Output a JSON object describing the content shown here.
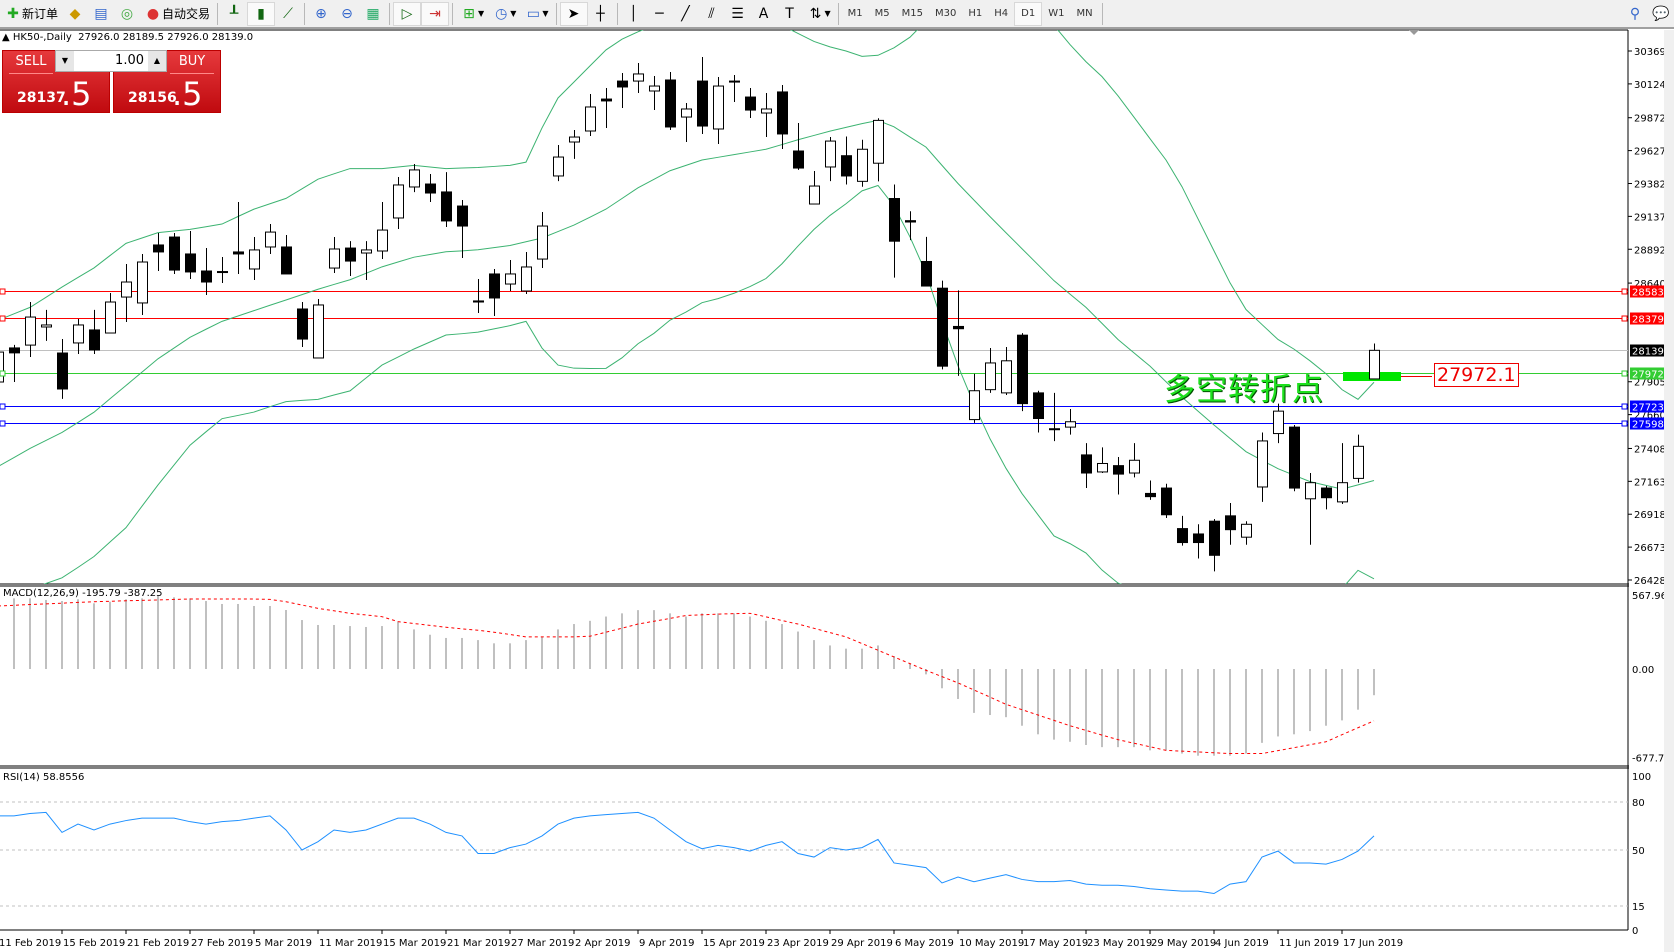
{
  "toolbar": {
    "new_order": "新订单",
    "auto_trading": "自动交易",
    "icons": [
      "new-order-icon",
      "market-watch-icon",
      "navigator-icon",
      "signals-icon",
      "auto-trading-icon",
      "bar-chart-icon",
      "candlestick-icon",
      "line-chart-icon",
      "zoom-in-icon",
      "zoom-out-icon",
      "tile-windows-icon",
      "chart-shift-icon",
      "auto-scroll-icon",
      "indicators-icon",
      "periods-icon",
      "templates-icon",
      "cursor-icon",
      "crosshair-icon",
      "vertical-line-icon",
      "horizontal-line-icon",
      "trendline-icon",
      "equidistant-channel-icon",
      "fibonacci-icon",
      "text-icon",
      "text-label-icon",
      "arrows-icon",
      "search-icon",
      "chat-icon"
    ],
    "timeframes": [
      "M1",
      "M5",
      "M15",
      "M30",
      "H1",
      "H4",
      "D1",
      "W1",
      "MN"
    ],
    "active_timeframe": "D1"
  },
  "header": {
    "symbol": "HK50-,Daily",
    "ohlc": "27926.0 28189.5 27926.0 28139.0"
  },
  "trade_panel": {
    "sell_label": "SELL",
    "buy_label": "BUY",
    "volume": "1.00",
    "sell_price_main": "28137",
    "sell_price_big": ".5",
    "buy_price_main": "28156",
    "buy_price_big": ".5"
  },
  "annotation": {
    "text": "多空转折点",
    "price_label": "27972.1",
    "color": "#00e600"
  },
  "macd": {
    "label": "MACD(12,26,9) -195.79 -387.25",
    "axis": [
      "567.96",
      "0.00",
      "-677.71"
    ]
  },
  "rsi": {
    "label": "RSI(14) 58.8556",
    "axis": [
      "100",
      "80",
      "50",
      "15",
      "0"
    ]
  },
  "chart_data": [
    {
      "type": "candlestick",
      "symbol": "HK50-",
      "timeframe": "Daily",
      "ylim": [
        26428,
        30369
      ],
      "y_ticks": [
        "30369.0",
        "30124.0",
        "29872.0",
        "29627.0",
        "29382.0",
        "29137.0",
        "28892.0",
        "28640.0",
        "27905.0",
        "27660.0",
        "27408.0",
        "27163.0",
        "26918.0",
        "26673.0",
        "26428.0"
      ],
      "x_tick_labels": [
        "11 Feb 2019",
        "15 Feb 2019",
        "21 Feb 2019",
        "27 Feb 2019",
        "5 Mar 2019",
        "11 Mar 2019",
        "15 Mar 2019",
        "21 Mar 2019",
        "27 Mar 2019",
        "2 Apr 2019",
        "9 Apr 2019",
        "15 Apr 2019",
        "23 Apr 2019",
        "29 Apr 2019",
        "6 May 2019",
        "10 May 2019",
        "17 May 2019",
        "23 May 2019",
        "29 May 2019",
        "4 Jun 2019",
        "11 Jun 2019",
        "17 Jun 2019"
      ],
      "ohlc": [
        [
          27903,
          28150,
          27880,
          28126
        ],
        [
          28157,
          28180,
          27903,
          28120
        ],
        [
          28178,
          28499,
          28089,
          28387
        ],
        [
          28313,
          28440,
          28209,
          28328
        ],
        [
          28119,
          28223,
          27777,
          27851
        ],
        [
          28194,
          28372,
          28112,
          28328
        ],
        [
          28291,
          28440,
          28112,
          28142
        ],
        [
          28268,
          28566,
          28268,
          28499
        ],
        [
          28536,
          28782,
          28350,
          28648
        ],
        [
          28492,
          28857,
          28402,
          28797
        ],
        [
          28924,
          29013,
          28730,
          28872
        ],
        [
          28983,
          29013,
          28708,
          28737
        ],
        [
          28857,
          29028,
          28670,
          28723
        ],
        [
          28730,
          28901,
          28551,
          28648
        ],
        [
          28723,
          28834,
          28641,
          28726
        ],
        [
          28872,
          29244,
          28708,
          28857
        ],
        [
          28745,
          28983,
          28663,
          28887
        ],
        [
          28909,
          29080,
          28857,
          29020
        ],
        [
          28909,
          28998,
          28708,
          28708
        ],
        [
          28447,
          28499,
          28164,
          28223
        ],
        [
          28082,
          28521,
          28082,
          28477
        ],
        [
          28752,
          28983,
          28715,
          28894
        ],
        [
          28901,
          28953,
          28693,
          28804
        ],
        [
          28864,
          28953,
          28663,
          28887
        ],
        [
          28879,
          29244,
          28819,
          29035
        ],
        [
          29125,
          29430,
          29043,
          29371
        ],
        [
          29356,
          29527,
          29318,
          29483
        ],
        [
          29378,
          29453,
          29244,
          29311
        ],
        [
          29319,
          29467,
          29058,
          29103
        ],
        [
          29214,
          29259,
          28827,
          29065
        ],
        [
          28507,
          28670,
          28417,
          28499
        ],
        [
          28708,
          28745,
          28395,
          28529
        ],
        [
          28633,
          28812,
          28581,
          28708
        ],
        [
          28581,
          28872,
          28559,
          28760
        ],
        [
          28819,
          29170,
          28752,
          29065
        ],
        [
          29438,
          29669,
          29400,
          29579
        ],
        [
          29691,
          29780,
          29565,
          29728
        ],
        [
          29773,
          30049,
          29736,
          29952
        ],
        [
          30011,
          30093,
          29795,
          29997
        ],
        [
          30145,
          30205,
          29944,
          30101
        ],
        [
          30145,
          30280,
          30056,
          30198
        ],
        [
          30071,
          30183,
          29929,
          30108
        ],
        [
          30153,
          30213,
          29780,
          29803
        ],
        [
          29877,
          29982,
          29691,
          29937
        ],
        [
          30145,
          30324,
          29751,
          29810
        ],
        [
          29788,
          30175,
          29676,
          30108
        ],
        [
          30140,
          30190,
          29989,
          30145
        ],
        [
          30026,
          30093,
          29870,
          29929
        ],
        [
          29907,
          30056,
          29728,
          29937
        ],
        [
          30064,
          30116,
          29639,
          29751
        ],
        [
          29624,
          29833,
          29483,
          29497
        ],
        [
          29229,
          29475,
          29229,
          29363
        ],
        [
          29505,
          29728,
          29400,
          29698
        ],
        [
          29589,
          29732,
          29374,
          29438
        ],
        [
          29398,
          29708,
          29358,
          29637
        ],
        [
          29533,
          29868,
          29398,
          29852
        ],
        [
          29270,
          29374,
          28681,
          28952
        ],
        [
          29105,
          29175,
          28960,
          29095
        ],
        [
          28801,
          28984,
          28618,
          28618
        ],
        [
          28602,
          28658,
          27997,
          28021
        ],
        [
          28317,
          28586,
          27949,
          28300
        ],
        [
          27623,
          27965,
          27599,
          27838
        ],
        [
          27846,
          28156,
          27822,
          28045
        ],
        [
          27822,
          28164,
          27806,
          28061
        ],
        [
          28252,
          28267,
          27686,
          27742
        ],
        [
          27822,
          27838,
          27527,
          27631
        ],
        [
          27555,
          27822,
          27463,
          27551
        ],
        [
          27567,
          27702,
          27511,
          27607
        ],
        [
          27360,
          27448,
          27113,
          27225
        ],
        [
          27233,
          27416,
          27225,
          27296
        ],
        [
          27280,
          27344,
          27065,
          27217
        ],
        [
          27225,
          27448,
          27193,
          27320
        ],
        [
          27073,
          27169,
          27025,
          27049
        ],
        [
          27113,
          27145,
          26890,
          26914
        ],
        [
          26811,
          26906,
          26684,
          26707
        ],
        [
          26771,
          26843,
          26588,
          26707
        ],
        [
          26866,
          26882,
          26492,
          26612
        ],
        [
          26906,
          27002,
          26691,
          26803
        ],
        [
          26747,
          26866,
          26691,
          26843
        ],
        [
          27121,
          27527,
          27010,
          27464
        ],
        [
          27519,
          27742,
          27448,
          27686
        ],
        [
          27567,
          27583,
          27089,
          27113
        ],
        [
          27033,
          27225,
          26691,
          27153
        ],
        [
          27113,
          27129,
          26954,
          27041
        ],
        [
          27010,
          27448,
          26994,
          27153
        ],
        [
          27185,
          27511,
          27153,
          27424
        ],
        [
          27926,
          28189.5,
          27926,
          28139
        ]
      ],
      "bollinger": {
        "color": "#3cb371",
        "upper": [
          28363,
          28411,
          28459,
          28534,
          28610,
          28682,
          28753,
          28845,
          28936,
          28976,
          29016,
          29028,
          29040,
          29060,
          29080,
          29136,
          29191,
          29231,
          29271,
          29342,
          29414,
          29454,
          29493,
          29493,
          29493,
          29505,
          29517,
          29505,
          29493,
          29497,
          29501,
          29509,
          29517,
          29541,
          29796,
          30019,
          30138,
          30258,
          30377,
          30457,
          30512,
          30560,
          30590,
          30610,
          30620,
          30630,
          30630,
          30620,
          30600,
          30560,
          30500,
          30440,
          30400,
          30369,
          30329,
          30337,
          30393,
          30472,
          30592,
          30680,
          30740,
          30780,
          30790,
          30770,
          30720,
          30640,
          30560,
          30417,
          30289,
          30178,
          30035,
          29876,
          29716,
          29557,
          29358,
          29119,
          28880,
          28642,
          28443,
          28331,
          28220,
          28148,
          28061,
          27965,
          27846,
          27774,
          27901
        ],
        "middle": [
          27273,
          27340,
          27408,
          27468,
          27527,
          27602,
          27678,
          27778,
          27877,
          27977,
          28076,
          28156,
          28236,
          28296,
          28355,
          28395,
          28435,
          28475,
          28514,
          28554,
          28594,
          28630,
          28665,
          28713,
          28761,
          28797,
          28833,
          28853,
          28873,
          28880,
          28888,
          28904,
          28920,
          28948,
          28976,
          29024,
          29072,
          29131,
          29191,
          29270,
          29350,
          29413,
          29477,
          29517,
          29557,
          29577,
          29597,
          29617,
          29637,
          29672,
          29708,
          29740,
          29772,
          29800,
          29828,
          29852,
          29804,
          29728,
          29653,
          29517,
          29382,
          29258,
          29135,
          29015,
          28896,
          28777,
          28658,
          28558,
          28459,
          28340,
          28220,
          28120,
          28021,
          27905,
          27790,
          27686,
          27583,
          27483,
          27384,
          27320,
          27257,
          27209,
          27161,
          27133,
          27105,
          27137,
          27169
        ],
        "lower": [
          26183,
          26269,
          26357,
          26402,
          26444,
          26522,
          26603,
          26711,
          26818,
          26978,
          27136,
          27284,
          27432,
          27532,
          27630,
          27654,
          27679,
          27719,
          27757,
          27766,
          27774,
          27806,
          27837,
          27933,
          28029,
          28089,
          28149,
          28201,
          28253,
          28263,
          28275,
          28299,
          28323,
          28355,
          28156,
          28029,
          28006,
          28004,
          28005,
          28083,
          28188,
          28266,
          28364,
          28424,
          28494,
          28524,
          28564,
          28614,
          28674,
          28784,
          28916,
          29040,
          29144,
          29231,
          29327,
          29367,
          29215,
          28984,
          28714,
          28354,
          28024,
          27736,
          27480,
          27260,
          27072,
          26914,
          26756,
          26699,
          26629,
          26502,
          26405,
          26364,
          26326,
          26253,
          26222,
          26253,
          26286,
          26324,
          26325,
          26309,
          26294,
          26270,
          26261,
          26301,
          26364,
          26500,
          26437
        ]
      },
      "levels": [
        {
          "value": "28583.6",
          "color": "#ff0000"
        },
        {
          "value": "28379.9",
          "color": "#ff0000"
        },
        {
          "value": "28139.0",
          "color": "#000000",
          "line": "#c0c0c0"
        },
        {
          "value": "27972.1",
          "color": "#32cd32"
        },
        {
          "value": "27723.4",
          "color": "#0000ff"
        },
        {
          "value": "27598.9",
          "color": "#0000ff"
        }
      ]
    },
    {
      "type": "bar",
      "name": "MACD(12,26,9)",
      "ylim": [
        -677.71,
        567.96
      ],
      "histogram": [
        530,
        528,
        528,
        516,
        508,
        521,
        491,
        503,
        521,
        528,
        546,
        536,
        528,
        508,
        486,
        486,
        471,
        471,
        441,
        366,
        329,
        329,
        321,
        314,
        321,
        354,
        296,
        256,
        232,
        232,
        216,
        192,
        192,
        216,
        240,
        296,
        336,
        360,
        392,
        416,
        440,
        440,
        416,
        392,
        416,
        416,
        416,
        392,
        360,
        336,
        280,
        216,
        176,
        152,
        152,
        176,
        96,
        40,
        -40,
        -144,
        -224,
        -328,
        -344,
        -360,
        -424,
        -488,
        -528,
        -544,
        -568,
        -584,
        -584,
        -584,
        -608,
        -608,
        -632,
        -648,
        -648,
        -648,
        -632,
        -552,
        -504,
        -488,
        -464,
        -424,
        -384,
        -304,
        -195.79
      ],
      "signal": [
        471,
        476,
        482,
        487,
        492,
        498,
        503,
        506,
        510,
        513,
        516,
        520,
        523,
        523,
        523,
        523,
        523,
        520,
        503,
        478,
        453,
        435,
        416,
        404,
        391,
        354,
        340,
        326,
        312,
        300,
        290,
        275,
        258,
        240,
        240,
        240,
        240,
        245,
        275,
        305,
        336,
        357,
        378,
        400,
        405,
        410,
        414,
        416,
        390,
        362,
        336,
        304,
        272,
        240,
        190,
        140,
        90,
        40,
        -10,
        -57,
        -104,
        -157,
        -210,
        -264,
        -304,
        -344,
        -384,
        -424,
        -459,
        -494,
        -528,
        -555,
        -581,
        -608,
        -614,
        -620,
        -626,
        -632,
        -632,
        -632,
        -610,
        -588,
        -566,
        -544,
        -491,
        -439,
        -387.25
      ],
      "colors": {
        "histogram": "#c0c0c0",
        "signal": "#ff0000"
      }
    },
    {
      "type": "line",
      "name": "RSI(14)",
      "ylim": [
        0,
        100
      ],
      "levels": [
        80,
        50,
        15
      ],
      "values": [
        71.3,
        71.3,
        72.8,
        73.5,
        61.0,
        66.2,
        62.5,
        66.2,
        68.4,
        69.9,
        69.9,
        69.9,
        67.7,
        66.2,
        67.7,
        68.4,
        69.9,
        71.3,
        62.5,
        50.0,
        55.2,
        62.5,
        61.0,
        62.5,
        66.2,
        69.9,
        69.9,
        66.2,
        61.0,
        58.8,
        47.8,
        47.8,
        51.5,
        53.7,
        58.8,
        66.2,
        69.9,
        71.3,
        72.1,
        72.8,
        73.5,
        69.9,
        62.5,
        55.2,
        50.8,
        52.9,
        51.5,
        49.3,
        52.9,
        55.2,
        47.8,
        45.6,
        51.5,
        50.0,
        51.5,
        56.6,
        41.9,
        40.5,
        39.0,
        29.4,
        33.1,
        30.2,
        32.4,
        34.6,
        31.6,
        30.2,
        30.2,
        30.9,
        28.7,
        28.0,
        28.0,
        27.2,
        25.8,
        25.0,
        24.3,
        24.3,
        22.8,
        28.7,
        30.2,
        45.6,
        49.3,
        41.9,
        41.9,
        41.2,
        44.1,
        49.3,
        58.8556
      ],
      "color": "#1e90ff"
    }
  ]
}
